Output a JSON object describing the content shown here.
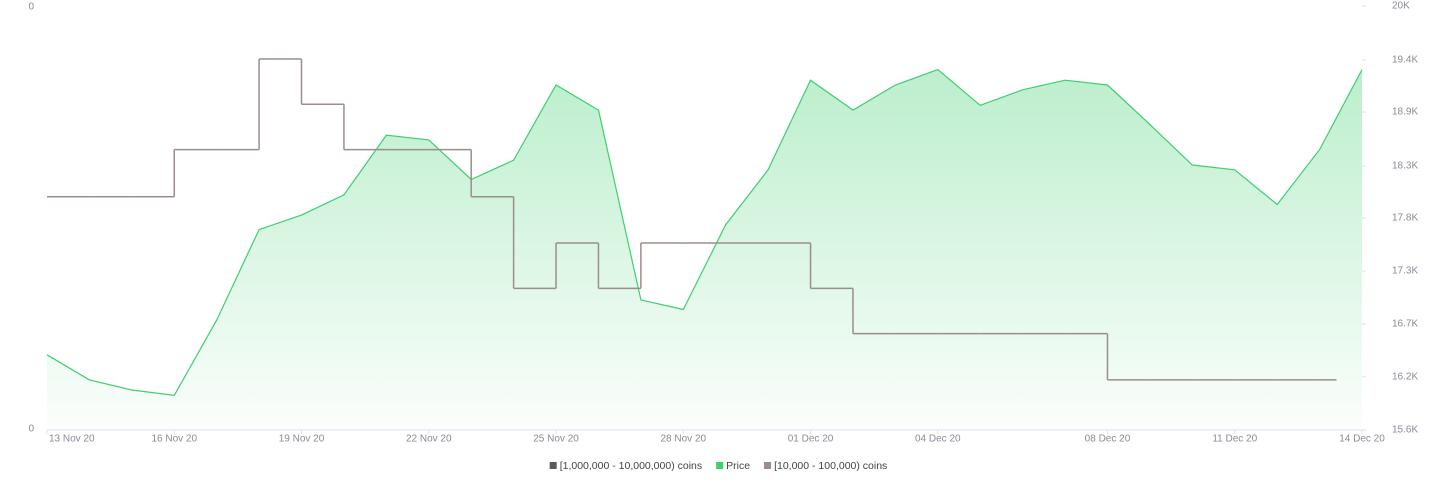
{
  "chart_data": {
    "type": "line",
    "left_axis_labels": [
      "0",
      "0"
    ],
    "x": [
      "2020-11-13",
      "2020-11-14",
      "2020-11-15",
      "2020-11-16",
      "2020-11-17",
      "2020-11-18",
      "2020-11-19",
      "2020-11-20",
      "2020-11-21",
      "2020-11-22",
      "2020-11-23",
      "2020-11-24",
      "2020-11-25",
      "2020-11-26",
      "2020-11-27",
      "2020-11-28",
      "2020-11-29",
      "2020-11-30",
      "2020-12-01",
      "2020-12-02",
      "2020-12-03",
      "2020-12-04",
      "2020-12-05",
      "2020-12-06",
      "2020-12-07",
      "2020-12-08",
      "2020-12-09",
      "2020-12-10",
      "2020-12-11",
      "2020-12-12",
      "2020-12-13",
      "2020-12-14"
    ],
    "xlim": [
      "2020-11-13",
      "2020-12-14"
    ],
    "xticks": [
      {
        "value": "2020-11-13",
        "label": "13 Nov 20"
      },
      {
        "value": "2020-11-16",
        "label": "16 Nov 20"
      },
      {
        "value": "2020-11-19",
        "label": "19 Nov 20"
      },
      {
        "value": "2020-11-22",
        "label": "22 Nov 20"
      },
      {
        "value": "2020-11-25",
        "label": "25 Nov 20"
      },
      {
        "value": "2020-11-28",
        "label": "28 Nov 20"
      },
      {
        "value": "2020-12-01",
        "label": "01 Dec 20"
      },
      {
        "value": "2020-12-04",
        "label": "04 Dec 20"
      },
      {
        "value": "2020-12-08",
        "label": "08 Dec 20"
      },
      {
        "value": "2020-12-11",
        "label": "11 Dec 20"
      },
      {
        "value": "2020-12-14",
        "label": "14 Dec 20"
      }
    ],
    "y2lim": [
      15600,
      20000
    ],
    "y2ticks": [
      {
        "value": 15600,
        "label": "15.6K"
      },
      {
        "value": 16150,
        "label": "16.2K"
      },
      {
        "value": 16700,
        "label": "16.7K"
      },
      {
        "value": 17250,
        "label": "17.3K"
      },
      {
        "value": 17800,
        "label": "17.8K"
      },
      {
        "value": 18340,
        "label": "18.3K"
      },
      {
        "value": 18900,
        "label": "18.9K"
      },
      {
        "value": 19440,
        "label": "19.4K"
      },
      {
        "value": 20000,
        "label": "20K"
      }
    ],
    "series": [
      {
        "name": "[1,000,000 - 10,000,000) coins",
        "color": "#5a5a5a",
        "style": "step",
        "axis": "y2",
        "values": [
          null,
          null,
          null,
          null,
          null,
          null,
          null,
          null,
          null,
          null,
          null,
          null,
          null,
          null,
          null,
          null,
          null,
          null,
          null,
          null,
          null,
          null,
          null,
          null,
          null,
          null,
          null,
          null,
          null,
          null,
          null,
          null
        ]
      },
      {
        "name": "Price",
        "color": "#3ecf6e",
        "style": "area",
        "axis": "y2",
        "values": [
          16380,
          16120,
          16015,
          15960,
          16740,
          17680,
          17830,
          18040,
          18660,
          18610,
          18200,
          18400,
          19180,
          18920,
          16950,
          16850,
          17730,
          18300,
          19230,
          18920,
          19180,
          19340,
          18970,
          19130,
          19230,
          19180,
          18770,
          18350,
          18300,
          17940,
          18510,
          19340
        ]
      },
      {
        "name": "[10,000 - 100,000) coins",
        "color": "#9b8e8a",
        "style": "step",
        "axis": "y2",
        "values": [
          18020,
          18020,
          18020,
          18510,
          18510,
          19450,
          18980,
          18510,
          18510,
          18510,
          18020,
          17070,
          17540,
          17070,
          17540,
          17540,
          17540,
          17540,
          17070,
          16600,
          16600,
          16600,
          16600,
          16600,
          16600,
          16120,
          16120,
          16120,
          16120,
          16120,
          16120,
          null
        ]
      }
    ]
  }
}
